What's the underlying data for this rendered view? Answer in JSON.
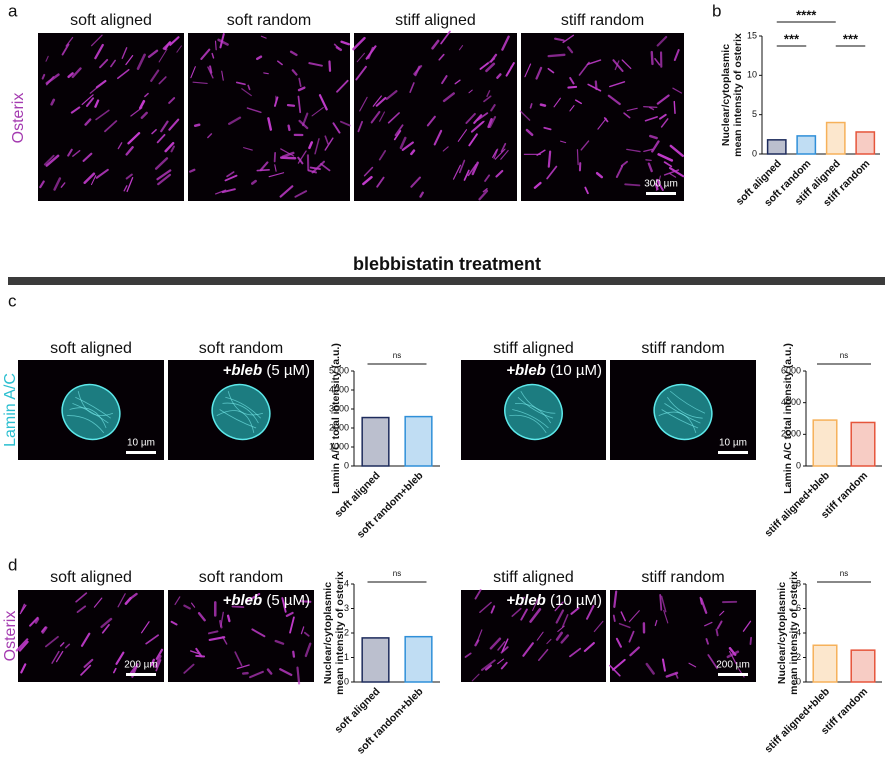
{
  "panel_a": {
    "label": "a",
    "stain": "Osterix",
    "titles": [
      "soft aligned",
      "soft random",
      "stiff aligned",
      "stiff random"
    ],
    "scale_bar": "300 µm"
  },
  "panel_b_label": "b",
  "section_title": "blebbistatin treatment",
  "panel_c": {
    "label": "c",
    "stain": "Lamin A/C",
    "titles": [
      "soft aligned",
      "soft random",
      "stiff aligned",
      "stiff random"
    ],
    "treatments": [
      {
        "drug": "+bleb",
        "dose": "(5 µM)"
      },
      {
        "drug": "+bleb",
        "dose": "(10 µM)"
      }
    ],
    "scale_bars": [
      "10 µm",
      "10 µm"
    ]
  },
  "panel_d": {
    "label": "d",
    "stain": "Osterix",
    "titles": [
      "soft aligned",
      "soft random",
      "stiff aligned",
      "stiff random"
    ],
    "treatments": [
      {
        "drug": "+bleb",
        "dose": "(5 µM)"
      },
      {
        "drug": "+bleb",
        "dose": "(10 µM)"
      }
    ],
    "scale_bars": [
      "200 µm",
      "200 µm"
    ]
  },
  "chart_data": [
    {
      "type": "bar",
      "ylabel": [
        "Nuclear/cytoplasmic",
        "mean intensity of osterix"
      ],
      "categories": [
        "soft aligned",
        "soft random",
        "stiff aligned",
        "stiff random"
      ],
      "values": [
        1.8,
        2.3,
        4.0,
        2.8
      ],
      "colors": [
        "#1d2b5c",
        "#2f8fd8",
        "#f6b15a",
        "#e5553b"
      ],
      "ylim": [
        0,
        15
      ],
      "yticks": [
        0,
        5,
        10,
        15
      ],
      "annotations": [
        "****",
        "***",
        "***"
      ]
    },
    {
      "type": "bar",
      "ylabel": [
        "Lamin A/C total intensity (a.u.)"
      ],
      "categories": [
        "soft aligned",
        "soft random+bleb"
      ],
      "values": [
        2550,
        2600
      ],
      "colors": [
        "#1d2b5c",
        "#2f8fd8"
      ],
      "ylim": [
        0,
        5000
      ],
      "yticks": [
        0,
        1000,
        2000,
        3000,
        4000,
        5000
      ],
      "annotations": [
        "ns"
      ]
    },
    {
      "type": "bar",
      "ylabel": [
        "Lamin A/C total intensity (a.u.)"
      ],
      "categories": [
        "stiff aligned+bleb",
        "stiff random"
      ],
      "values": [
        2900,
        2750
      ],
      "colors": [
        "#f6b15a",
        "#e5553b"
      ],
      "ylim": [
        0,
        6000
      ],
      "yticks": [
        0,
        2000,
        4000,
        6000
      ],
      "annotations": [
        "ns"
      ]
    },
    {
      "type": "bar",
      "ylabel": [
        "Nuclear/cytoplasmic",
        "mean intensity of osterix"
      ],
      "categories": [
        "soft aligned",
        "soft random+bleb"
      ],
      "values": [
        1.8,
        1.85
      ],
      "colors": [
        "#1d2b5c",
        "#2f8fd8"
      ],
      "ylim": [
        0,
        4
      ],
      "yticks": [
        0,
        1,
        2,
        3,
        4
      ],
      "annotations": [
        "ns"
      ]
    },
    {
      "type": "bar",
      "ylabel": [
        "Nuclear/cytoplasmic",
        "mean intensity of osterix"
      ],
      "categories": [
        "stiff aligned+bleb",
        "stiff random"
      ],
      "values": [
        3.0,
        2.6
      ],
      "colors": [
        "#f6b15a",
        "#e5553b"
      ],
      "ylim": [
        0,
        8
      ],
      "yticks": [
        0,
        2,
        4,
        6,
        8
      ],
      "annotations": [
        "ns"
      ]
    }
  ]
}
